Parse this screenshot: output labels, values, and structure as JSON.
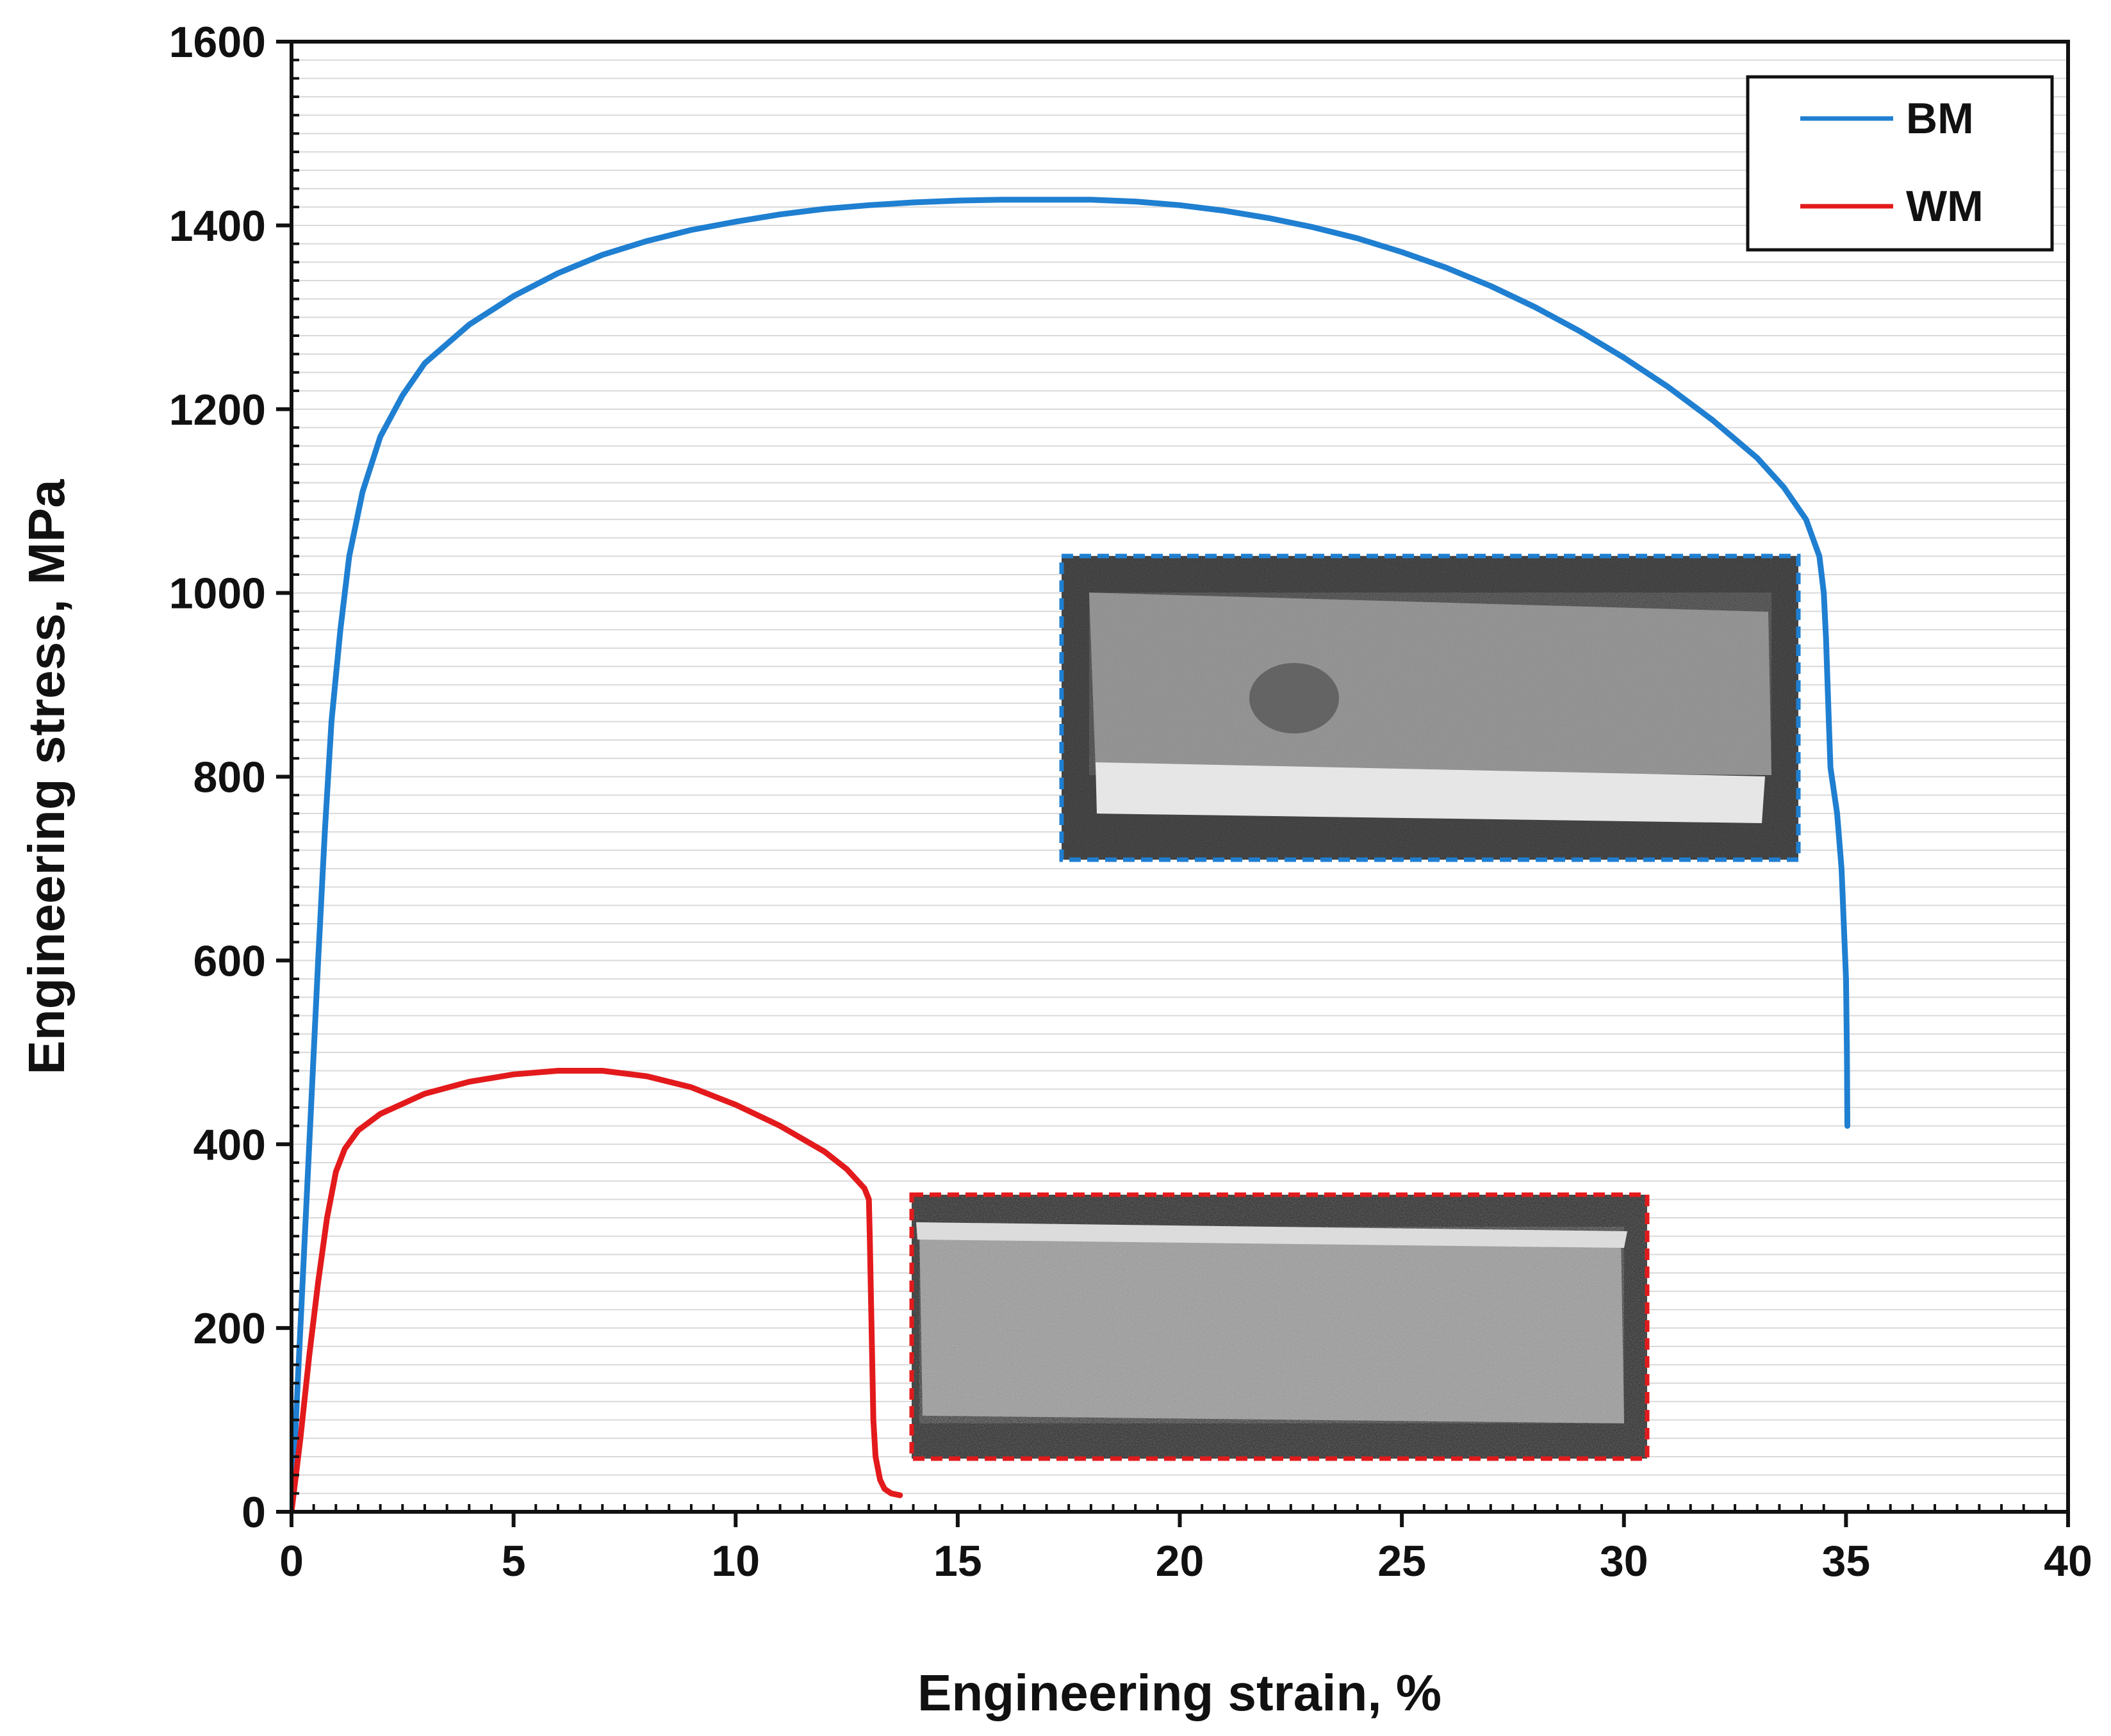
{
  "chart_data": {
    "type": "line",
    "title": "",
    "xlabel": "Engineering strain, %",
    "ylabel": "Engineering stress, MPa",
    "xlim": [
      0,
      40
    ],
    "ylim": [
      0,
      1600
    ],
    "xticks": [
      0,
      5,
      10,
      15,
      20,
      25,
      30,
      35,
      40
    ],
    "yticks": [
      0,
      200,
      400,
      600,
      800,
      1000,
      1200,
      1400,
      1600
    ],
    "grid": "horizontal minor lines",
    "legend_position": "top-right",
    "series": [
      {
        "name": "BM",
        "color": "#1f7fd1",
        "points": [
          [
            0,
            0
          ],
          [
            0.15,
            150
          ],
          [
            0.3,
            300
          ],
          [
            0.45,
            450
          ],
          [
            0.6,
            600
          ],
          [
            0.75,
            740
          ],
          [
            0.9,
            860
          ],
          [
            1.1,
            960
          ],
          [
            1.3,
            1040
          ],
          [
            1.6,
            1110
          ],
          [
            2,
            1170
          ],
          [
            2.5,
            1215
          ],
          [
            3,
            1250
          ],
          [
            4,
            1292
          ],
          [
            5,
            1323
          ],
          [
            6,
            1348
          ],
          [
            7,
            1368
          ],
          [
            8,
            1383
          ],
          [
            9,
            1395
          ],
          [
            10,
            1404
          ],
          [
            11,
            1412
          ],
          [
            12,
            1418
          ],
          [
            13,
            1422
          ],
          [
            14,
            1425
          ],
          [
            15,
            1427
          ],
          [
            16,
            1428
          ],
          [
            17,
            1428
          ],
          [
            18,
            1428
          ],
          [
            19,
            1426
          ],
          [
            20,
            1422
          ],
          [
            21,
            1416
          ],
          [
            22,
            1408
          ],
          [
            23,
            1398
          ],
          [
            24,
            1386
          ],
          [
            25,
            1371
          ],
          [
            26,
            1354
          ],
          [
            27,
            1334
          ],
          [
            28,
            1311
          ],
          [
            29,
            1285
          ],
          [
            30,
            1256
          ],
          [
            31,
            1224
          ],
          [
            32,
            1188
          ],
          [
            33,
            1147
          ],
          [
            33.6,
            1115
          ],
          [
            34.1,
            1080
          ],
          [
            34.4,
            1040
          ],
          [
            34.5,
            1000
          ],
          [
            34.55,
            950
          ],
          [
            34.6,
            880
          ],
          [
            34.65,
            810
          ],
          [
            34.8,
            760
          ],
          [
            34.9,
            700
          ],
          [
            34.95,
            640
          ],
          [
            35,
            580
          ],
          [
            35.02,
            500
          ],
          [
            35.03,
            420
          ]
        ]
      },
      {
        "name": "WM",
        "color": "#e31a1c",
        "points": [
          [
            0,
            0
          ],
          [
            0.2,
            80
          ],
          [
            0.4,
            170
          ],
          [
            0.6,
            250
          ],
          [
            0.8,
            320
          ],
          [
            1,
            370
          ],
          [
            1.2,
            395
          ],
          [
            1.5,
            415
          ],
          [
            2,
            433
          ],
          [
            3,
            455
          ],
          [
            4,
            468
          ],
          [
            5,
            476
          ],
          [
            6,
            480
          ],
          [
            7,
            480
          ],
          [
            8,
            474
          ],
          [
            9,
            462
          ],
          [
            10,
            443
          ],
          [
            11,
            420
          ],
          [
            12,
            392
          ],
          [
            12.5,
            373
          ],
          [
            12.9,
            352
          ],
          [
            13.0,
            340
          ],
          [
            13.02,
            300
          ],
          [
            13.04,
            250
          ],
          [
            13.06,
            200
          ],
          [
            13.08,
            150
          ],
          [
            13.1,
            100
          ],
          [
            13.15,
            60
          ],
          [
            13.25,
            35
          ],
          [
            13.35,
            25
          ],
          [
            13.5,
            20
          ],
          [
            13.7,
            18
          ]
        ]
      }
    ],
    "annotations": [
      "fracture surface image for BM (blue dashed frame)",
      "fracture surface image for WM (red dashed frame)"
    ]
  }
}
